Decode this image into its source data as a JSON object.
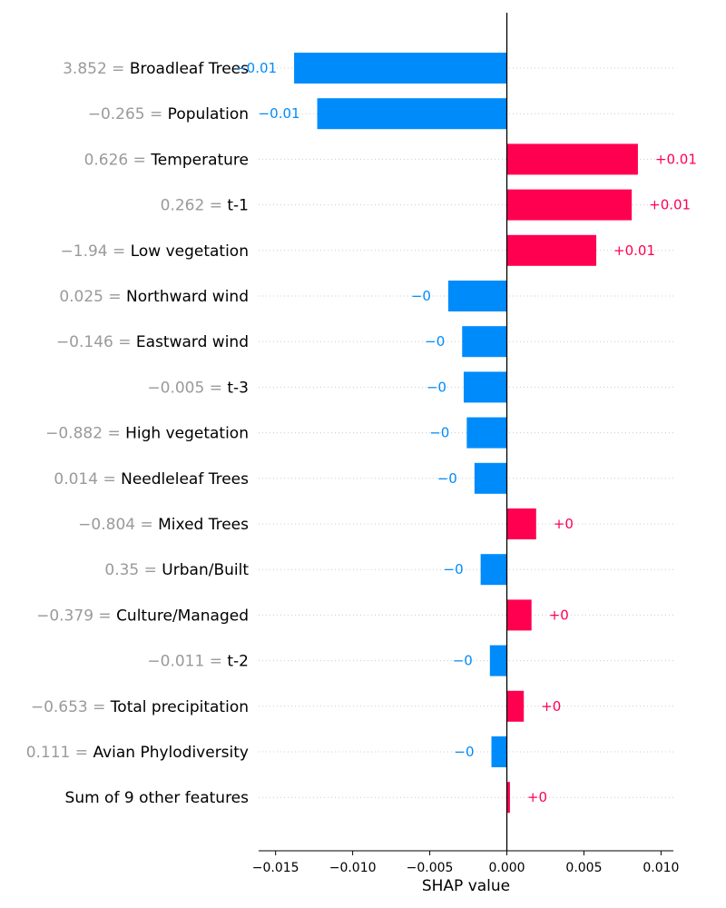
{
  "chart_data": {
    "type": "bar",
    "orientation": "horizontal",
    "xlabel": "SHAP value",
    "xlim": [
      -0.0161,
      0.0108
    ],
    "xticks": [
      -0.015,
      -0.01,
      -0.005,
      0.0,
      0.005,
      0.01
    ],
    "xtick_labels": [
      "−0.015",
      "−0.010",
      "−0.005",
      "0.000",
      "0.005",
      "0.010"
    ],
    "zero_line": 0,
    "colors": {
      "positive": "#ff0051",
      "negative": "#008bfb",
      "value_text": "#9a9a9a",
      "grid": "#cccccc"
    },
    "rows": [
      {
        "value_text": "3.852",
        "feature": "Broadleaf Trees",
        "shap": -0.0138,
        "label": "−0.01"
      },
      {
        "value_text": "−0.265",
        "feature": "Population",
        "shap": -0.0123,
        "label": "−0.01"
      },
      {
        "value_text": "0.626",
        "feature": "Temperature",
        "shap": 0.0085,
        "label": "+0.01"
      },
      {
        "value_text": "0.262",
        "feature": "t-1",
        "shap": 0.0081,
        "label": "+0.01"
      },
      {
        "value_text": "−1.94",
        "feature": "Low vegetation",
        "shap": 0.0058,
        "label": "+0.01"
      },
      {
        "value_text": "0.025",
        "feature": "Northward wind",
        "shap": -0.0038,
        "label": "−0"
      },
      {
        "value_text": "−0.146",
        "feature": "Eastward wind",
        "shap": -0.0029,
        "label": "−0"
      },
      {
        "value_text": "−0.005",
        "feature": "t-3",
        "shap": -0.0028,
        "label": "−0"
      },
      {
        "value_text": "−0.882",
        "feature": "High vegetation",
        "shap": -0.0026,
        "label": "−0"
      },
      {
        "value_text": "0.014",
        "feature": "Needleleaf Trees",
        "shap": -0.0021,
        "label": "−0"
      },
      {
        "value_text": "−0.804",
        "feature": "Mixed Trees",
        "shap": 0.0019,
        "label": "+0"
      },
      {
        "value_text": "0.35",
        "feature": "Urban/Built",
        "shap": -0.0017,
        "label": "−0"
      },
      {
        "value_text": "−0.379",
        "feature": "Culture/Managed",
        "shap": 0.0016,
        "label": "+0"
      },
      {
        "value_text": "−0.011",
        "feature": "t-2",
        "shap": -0.0011,
        "label": "−0"
      },
      {
        "value_text": "−0.653",
        "feature": "Total precipitation",
        "shap": 0.0011,
        "label": "+0"
      },
      {
        "value_text": "0.111",
        "feature": "Avian Phylodiversity",
        "shap": -0.001,
        "label": "−0"
      },
      {
        "value_text": "",
        "feature": "Sum of 9 other features",
        "shap": 0.0002,
        "label": "+0"
      }
    ]
  }
}
